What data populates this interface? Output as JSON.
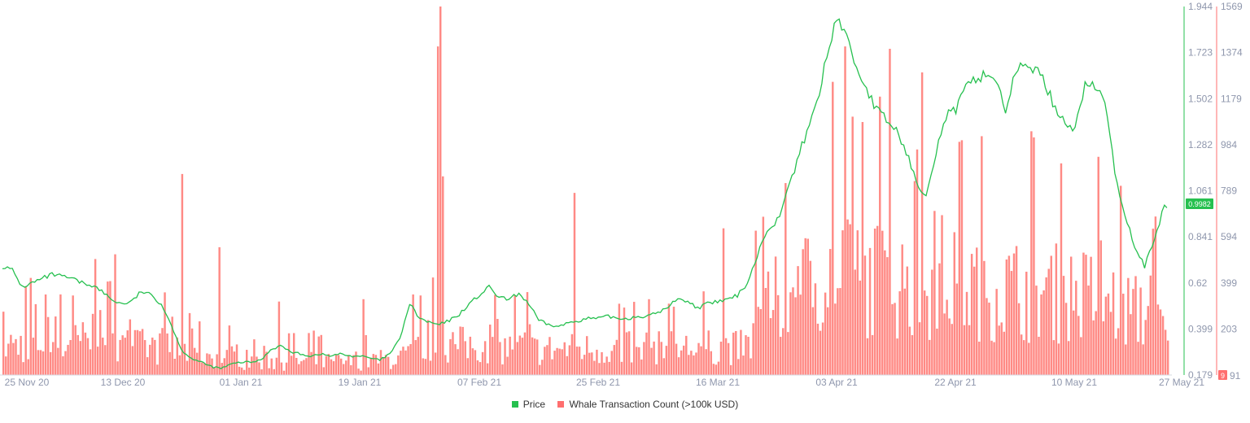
{
  "chart_data": {
    "type": "bar+line",
    "x_tick_labels": [
      "25 Nov 20",
      "13 Dec 20",
      "01 Jan 21",
      "19 Jan 21",
      "07 Feb 21",
      "25 Feb 21",
      "16 Mar 21",
      "03 Apr 21",
      "22 Apr 21",
      "10 May 21",
      "27 May 21"
    ],
    "price_axis": {
      "ticks": [
        "1.944",
        "1.723",
        "1.502",
        "1.282",
        "1.061",
        "0.841",
        "0.62",
        "0.399",
        "0.179"
      ],
      "range": [
        0.179,
        1.944
      ]
    },
    "count_axis": {
      "ticks": [
        "1569",
        "1374",
        "1179",
        "984",
        "789",
        "594",
        "399",
        "203"
      ],
      "bottom_label": "91",
      "range": [
        9,
        1569
      ]
    },
    "current_price_label": "0.9982",
    "current_count_label": "9",
    "series": [
      {
        "name": "Price",
        "kind": "line",
        "points": [
          [
            0,
            0.7
          ],
          [
            4,
            0.68
          ],
          [
            8,
            0.6
          ],
          [
            12,
            0.62
          ],
          [
            16,
            0.64
          ],
          [
            20,
            0.66
          ],
          [
            24,
            0.65
          ],
          [
            28,
            0.64
          ],
          [
            32,
            0.62
          ],
          [
            36,
            0.61
          ],
          [
            40,
            0.58
          ],
          [
            44,
            0.54
          ],
          [
            48,
            0.52
          ],
          [
            52,
            0.53
          ],
          [
            56,
            0.58
          ],
          [
            60,
            0.56
          ],
          [
            64,
            0.52
          ],
          [
            68,
            0.42
          ],
          [
            72,
            0.3
          ],
          [
            76,
            0.26
          ],
          [
            80,
            0.24
          ],
          [
            84,
            0.22
          ],
          [
            88,
            0.21
          ],
          [
            92,
            0.23
          ],
          [
            96,
            0.24
          ],
          [
            100,
            0.24
          ],
          [
            104,
            0.25
          ],
          [
            108,
            0.3
          ],
          [
            112,
            0.32
          ],
          [
            116,
            0.29
          ],
          [
            120,
            0.28
          ],
          [
            124,
            0.27
          ],
          [
            128,
            0.28
          ],
          [
            132,
            0.27
          ],
          [
            136,
            0.28
          ],
          [
            140,
            0.27
          ],
          [
            144,
            0.27
          ],
          [
            148,
            0.26
          ],
          [
            152,
            0.25
          ],
          [
            156,
            0.28
          ],
          [
            160,
            0.35
          ],
          [
            164,
            0.52
          ],
          [
            168,
            0.45
          ],
          [
            172,
            0.43
          ],
          [
            176,
            0.42
          ],
          [
            180,
            0.44
          ],
          [
            184,
            0.47
          ],
          [
            188,
            0.52
          ],
          [
            192,
            0.56
          ],
          [
            196,
            0.6
          ],
          [
            200,
            0.55
          ],
          [
            204,
            0.54
          ],
          [
            208,
            0.57
          ],
          [
            212,
            0.52
          ],
          [
            216,
            0.44
          ],
          [
            220,
            0.42
          ],
          [
            224,
            0.41
          ],
          [
            228,
            0.43
          ],
          [
            232,
            0.44
          ],
          [
            236,
            0.45
          ],
          [
            240,
            0.45
          ],
          [
            244,
            0.46
          ],
          [
            248,
            0.45
          ],
          [
            252,
            0.45
          ],
          [
            256,
            0.46
          ],
          [
            260,
            0.46
          ],
          [
            264,
            0.48
          ],
          [
            268,
            0.5
          ],
          [
            272,
            0.55
          ],
          [
            276,
            0.53
          ],
          [
            280,
            0.5
          ],
          [
            284,
            0.52
          ],
          [
            288,
            0.53
          ],
          [
            292,
            0.54
          ],
          [
            296,
            0.56
          ],
          [
            300,
            0.62
          ],
          [
            304,
            0.75
          ],
          [
            308,
            0.88
          ],
          [
            312,
            0.92
          ],
          [
            316,
            1.05
          ],
          [
            320,
            1.2
          ],
          [
            324,
            1.35
          ],
          [
            328,
            1.48
          ],
          [
            332,
            1.7
          ],
          [
            336,
            1.9
          ],
          [
            340,
            1.8
          ],
          [
            344,
            1.65
          ],
          [
            348,
            1.55
          ],
          [
            352,
            1.45
          ],
          [
            356,
            1.4
          ],
          [
            360,
            1.35
          ],
          [
            364,
            1.25
          ],
          [
            368,
            1.1
          ],
          [
            372,
            1.05
          ],
          [
            376,
            1.25
          ],
          [
            380,
            1.42
          ],
          [
            384,
            1.45
          ],
          [
            388,
            1.55
          ],
          [
            392,
            1.6
          ],
          [
            396,
            1.62
          ],
          [
            400,
            1.6
          ],
          [
            404,
            1.45
          ],
          [
            408,
            1.62
          ],
          [
            412,
            1.68
          ],
          [
            416,
            1.64
          ],
          [
            420,
            1.58
          ],
          [
            424,
            1.45
          ],
          [
            428,
            1.4
          ],
          [
            432,
            1.35
          ],
          [
            436,
            1.58
          ],
          [
            440,
            1.55
          ],
          [
            444,
            1.5
          ],
          [
            448,
            1.15
          ],
          [
            452,
            0.95
          ],
          [
            456,
            0.8
          ],
          [
            460,
            0.7
          ],
          [
            464,
            0.82
          ],
          [
            468,
            0.99
          ]
        ]
      },
      {
        "name": "Whale Transaction Count (>100k USD)",
        "kind": "bar",
        "generator": {
          "n": 470,
          "seed": 7,
          "base_levels": [
            [
              0,
              150
            ],
            [
              30,
              170
            ],
            [
              60,
              140
            ],
            [
              75,
              120
            ],
            [
              100,
              80
            ],
            [
              140,
              70
            ],
            [
              160,
              90
            ],
            [
              172,
              160
            ],
            [
              215,
              130
            ],
            [
              300,
              140
            ],
            [
              307,
              330
            ],
            [
              330,
              480
            ],
            [
              360,
              450
            ],
            [
              400,
              420
            ],
            [
              440,
              380
            ],
            [
              466,
              260
            ],
            [
              470,
              120
            ]
          ],
          "spikes": [
            [
              11,
              420
            ],
            [
              37,
              500
            ],
            [
              45,
              520
            ],
            [
              72,
              860
            ],
            [
              87,
              550
            ],
            [
              111,
              320
            ],
            [
              145,
              330
            ],
            [
              165,
              350
            ],
            [
              175,
              1400
            ],
            [
              176,
              1569
            ],
            [
              177,
              850
            ],
            [
              211,
              360
            ],
            [
              230,
              780
            ],
            [
              260,
              330
            ],
            [
              290,
              630
            ],
            [
              303,
              620
            ],
            [
              320,
              470
            ],
            [
              334,
              1250
            ],
            [
              339,
              1400
            ],
            [
              346,
              1080
            ],
            [
              357,
              1390
            ],
            [
              367,
              830
            ],
            [
              370,
              1290
            ],
            [
              394,
              1020
            ],
            [
              415,
              1015
            ],
            [
              426,
              905
            ],
            [
              450,
              810
            ],
            [
              462,
              430
            ]
          ]
        }
      }
    ],
    "colors": {
      "price": "#26c04f",
      "count": "#ff6f6f",
      "count_bar": "#ff8a85",
      "axis_text": "#8f97ad",
      "baseline": "#d4d8e2"
    },
    "legend": {
      "placement": "bottom-center"
    }
  }
}
